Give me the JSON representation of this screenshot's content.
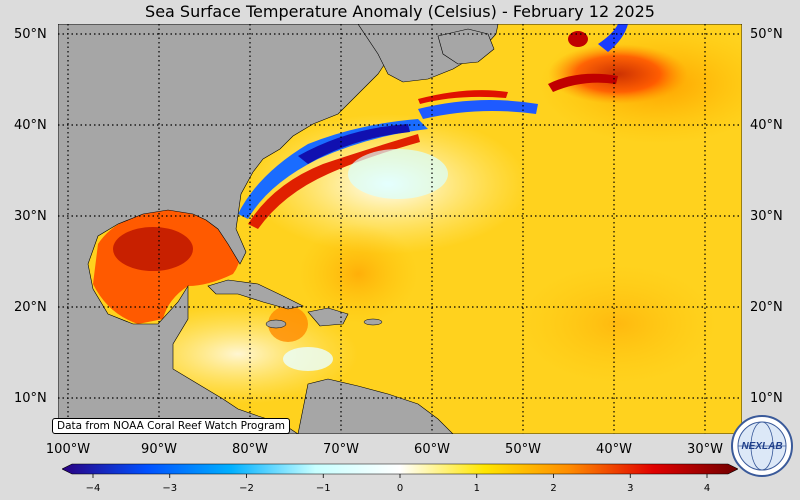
{
  "title": "Sea Surface Temperature Anomaly (Celsius) - February 12 2025",
  "lat_labels": [
    "50°N",
    "40°N",
    "30°N",
    "20°N",
    "10°N"
  ],
  "lon_labels": [
    "100°W",
    "90°W",
    "80°W",
    "70°W",
    "60°W",
    "50°W",
    "40°W",
    "30°W"
  ],
  "credit": "Data from NOAA Coral Reef Watch Program",
  "colorbar": {
    "ticks": [
      "−4",
      "−3",
      "−2",
      "−1",
      "0",
      "1",
      "2",
      "3",
      "4"
    ],
    "range": [
      -4,
      4
    ],
    "colors": [
      "#2a0080",
      "#0050ff",
      "#00b0ff",
      "#c8ffff",
      "#ffffff",
      "#ffe600",
      "#ff8c00",
      "#e00000",
      "#700000"
    ]
  },
  "colors": {
    "land": "#a6a6a6",
    "background": "#dcdcdc"
  },
  "logo": {
    "text": "NEXLAB",
    "icon": "globe-logo-icon"
  }
}
